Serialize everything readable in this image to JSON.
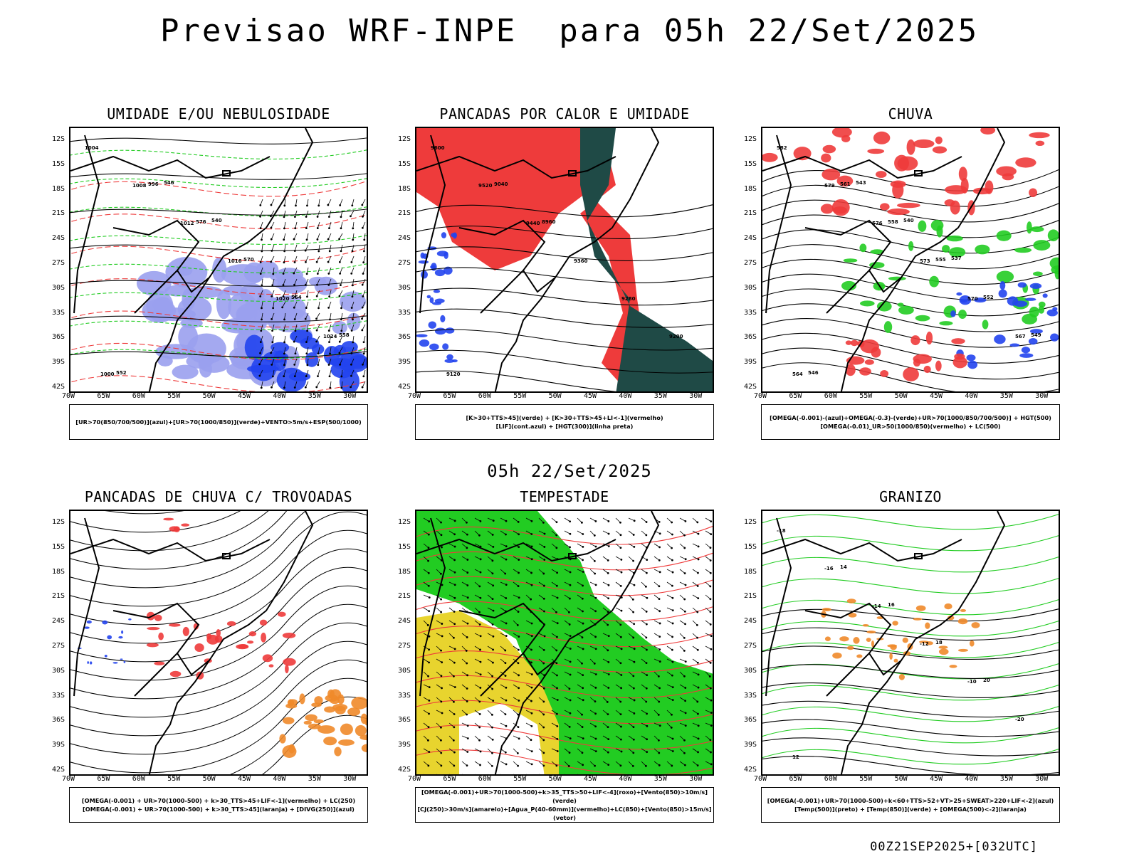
{
  "title": "Previsao WRF-INPE  para 05h 22/Set/2025",
  "mid_title": "05h 22/Set/2025",
  "footer": "00Z21SEP2025+[032UTC]",
  "lat_ticks": [
    "12S",
    "15S",
    "18S",
    "21S",
    "24S",
    "27S",
    "30S",
    "33S",
    "36S",
    "39S",
    "42S"
  ],
  "lon_ticks": [
    "70W",
    "65W",
    "60W",
    "55W",
    "50W",
    "45W",
    "40W",
    "35W",
    "30W"
  ],
  "colors": {
    "red": "#ee3b3b",
    "green": "#22cc22",
    "blue": "#2244ee",
    "dark_teal": "#1f4a46",
    "yellow": "#e8d42e",
    "orange": "#f08a2a",
    "lavender": "#9aa0ee"
  },
  "panels": [
    {
      "title": "UMIDADE E/OU NEBULOSIDADE",
      "legend": [
        "[UR>70(850/700/500)](azul)+[UR>70(1000/850)](verde)+VENTO>5m/s+ESP(500/1000)"
      ],
      "labels": [
        "1004",
        "1008",
        "1012",
        "1016",
        "1020",
        "1024",
        "1000",
        "996",
        "576",
        "570",
        "564",
        "558",
        "552",
        "546",
        "540"
      ]
    },
    {
      "title": "PANCADAS POR CALOR E UMIDADE",
      "legend": [
        "[K>30+TTS>45](verde) + [K>30+TTS>45+LI<-1](vermelho)",
        "[LIF](cont.azul) + [HGT(300)](linha preta)"
      ],
      "labels": [
        "9600",
        "9520",
        "9440",
        "9360",
        "9280",
        "9200",
        "9120",
        "9040",
        "8960"
      ]
    },
    {
      "title": "CHUVA",
      "legend": [
        "[OMEGA(-0.001)-(azul)+OMEGA(-0.3)-(verde)+UR>70(1000/850/700/500)] + HGT(500)",
        "[OMEGA(-0.01)_UR>50(1000/850)(vermelho) + LC(500)"
      ],
      "labels": [
        "582",
        "579",
        "576",
        "573",
        "570",
        "567",
        "564",
        "561",
        "558",
        "555",
        "552",
        "549",
        "546",
        "543",
        "540",
        "537"
      ]
    },
    {
      "title": "PANCADAS DE CHUVA C/ TROVOADAS",
      "legend": [
        "[OMEGA(-0.001) + UR>70(1000-500) + k>30_TTS>45+LIF<-1](vermelho) + LC(250)",
        "[OMEGA(-0.001) + UR>70(1000-500) + k>30_TTS>45](laranja) + [DIVG(250)](azul)"
      ],
      "labels": []
    },
    {
      "title": "TEMPESTADE",
      "legend": [
        "[OMEGA(-0.001)+UR>70(1000-500)+k>35_TTS>50+LIF<-4](roxo)+[Vento(850)>10m/s](verde)",
        "[CJ(250)>30m/s](amarelo)+[Agua_P(40-60mm)](vermelho)+LC(850)+[Vento(850)>15m/s](vetor)"
      ],
      "labels": []
    },
    {
      "title": "GRANIZO",
      "legend": [
        "[OMEGA(-0.001)+UR>70(1000-500)+k<60+TTS>52+VT>25+SWEAT>220+LIF<-2](azul)",
        "[Temp(500)](preto) + [Temp(850)](verde) + [OMEGA(500)<-2](laranja)"
      ],
      "labels": [
        "-18",
        "-16",
        "-14",
        "-12",
        "-10",
        "-20",
        "12",
        "14",
        "16",
        "18",
        "20"
      ]
    }
  ]
}
